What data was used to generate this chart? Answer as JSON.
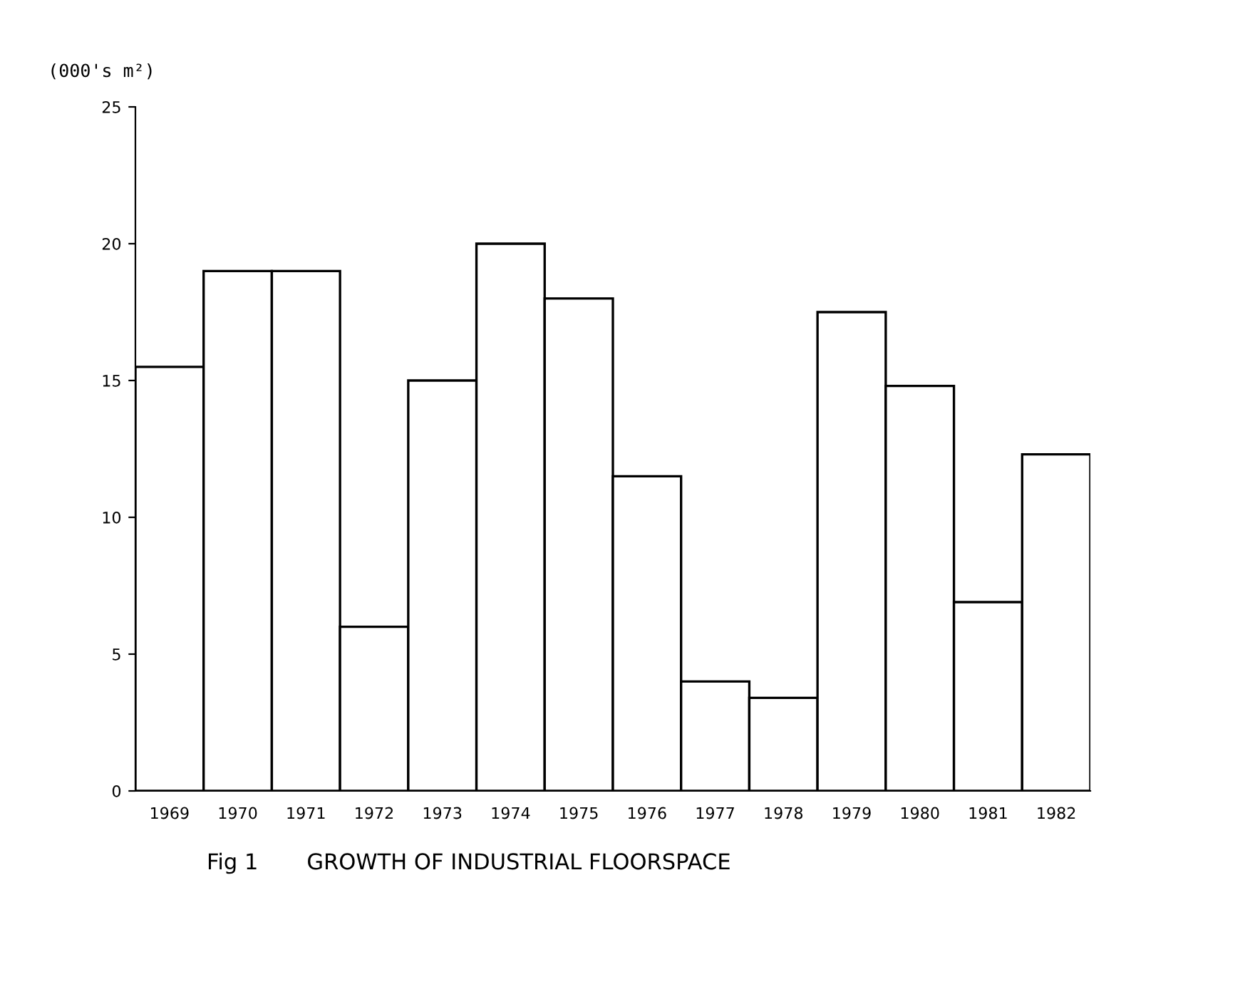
{
  "chart_data": {
    "type": "bar",
    "title": "Fig 1       GROWTH OF INDUSTRIAL FLOORSPACE",
    "ylabel": "(000's m²)",
    "categories": [
      "1969",
      "1970",
      "1971",
      "1972",
      "1973",
      "1974",
      "1975",
      "1976",
      "1977",
      "1978",
      "1979",
      "1980",
      "1981",
      "1982"
    ],
    "values": [
      15.5,
      19,
      19,
      6,
      15,
      20,
      18,
      11.5,
      4,
      3.4,
      17.5,
      14.8,
      6.9,
      12.3
    ],
    "color": "#ffffff",
    "ylim": [
      0,
      25
    ],
    "yticks": [
      0,
      5,
      10,
      15,
      20,
      25
    ],
    "grid": false,
    "legend": false
  }
}
